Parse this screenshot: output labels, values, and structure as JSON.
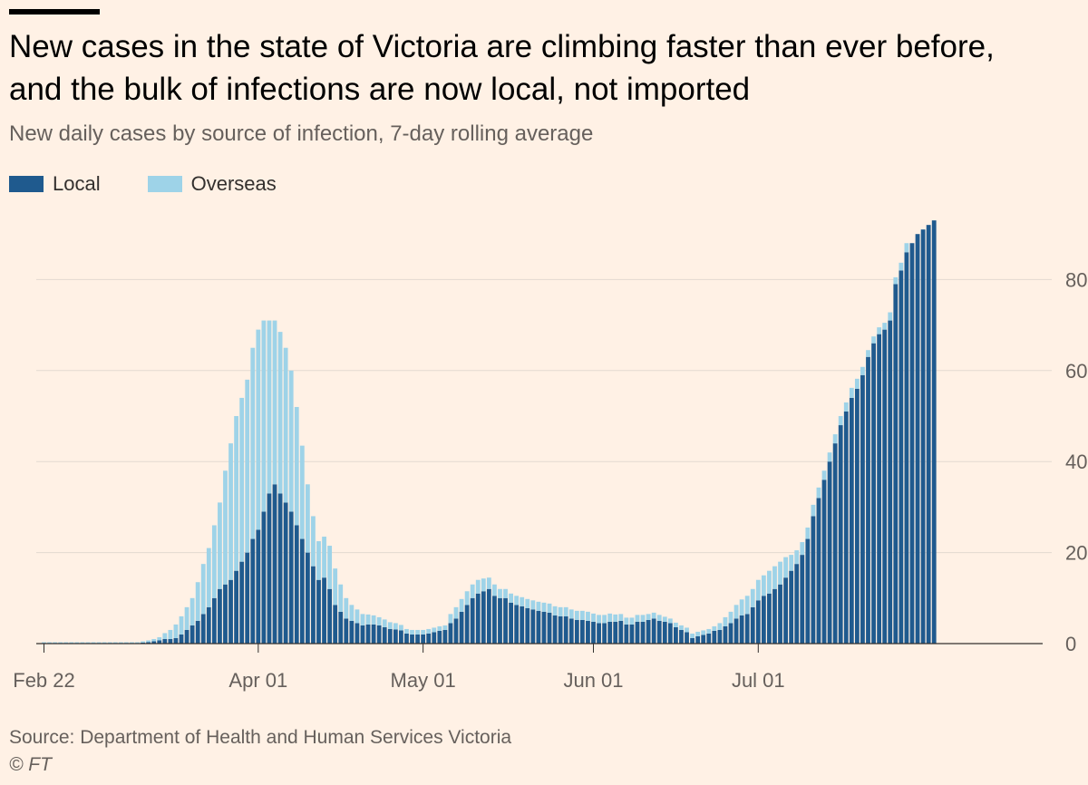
{
  "header": {
    "title": "New cases in the state of Victoria are climbing faster than ever before, and the bulk of infections are now local, not imported",
    "subtitle": "New daily cases by source of infection, 7-day rolling average"
  },
  "footer": {
    "source": "Source: Department of Health and Human Services Victoria",
    "credit": "© FT"
  },
  "colors": {
    "background": "#FFF1E5",
    "local": "#1F5A8E",
    "overseas": "#9ED3E8",
    "grid": "#E3D9D0"
  },
  "chart_data": {
    "type": "bar",
    "stacked": true,
    "title": "New cases in the state of Victoria are climbing faster than ever before, and the bulk of infections are now local, not imported",
    "subtitle": "New daily cases by source of infection, 7-day rolling average",
    "x_start_date": "2020-02-22",
    "x_ticks": [
      "Feb 22",
      "Apr 01",
      "May 01",
      "Jun 01",
      "Jul 01"
    ],
    "y_ticks": [
      0,
      20,
      40,
      60,
      80
    ],
    "ylim": [
      0,
      96
    ],
    "y_axis_side": "right",
    "grid": true,
    "legend_position": "top-left",
    "series": [
      {
        "name": "Local",
        "color": "#1F5A8E",
        "values": [
          0,
          0,
          0,
          0,
          0,
          0,
          0,
          0,
          0,
          0,
          0,
          0,
          0,
          0,
          0,
          0,
          0,
          0,
          0.2,
          0.3,
          0.5,
          0.7,
          1,
          1,
          1.2,
          2,
          3,
          4,
          5,
          6.5,
          8,
          10,
          12,
          13,
          14,
          16,
          18,
          20,
          23,
          25,
          29,
          33,
          35,
          33,
          31,
          29,
          26,
          23,
          20,
          17,
          14,
          14.5,
          12,
          8.5,
          7,
          5.5,
          5,
          4.5,
          4,
          4.2,
          4.2,
          4,
          3.6,
          3.2,
          3.1,
          2.9,
          2.2,
          2,
          2,
          2,
          2.2,
          2.5,
          2.8,
          3,
          4.5,
          5.5,
          7,
          8.5,
          10,
          11,
          11.5,
          12,
          10.5,
          10,
          10,
          9,
          8.5,
          8.2,
          7.8,
          7.5,
          7.2,
          7,
          6.8,
          6.2,
          6,
          6,
          5.5,
          5.2,
          5.2,
          5,
          4.8,
          4.5,
          4.5,
          4.8,
          4.8,
          5,
          4.2,
          4.2,
          4.8,
          4.8,
          5.2,
          5.5,
          5,
          4.8,
          4.5,
          3.6,
          3,
          2.5,
          1.2,
          1.6,
          1.9,
          2.2,
          2.8,
          3,
          3.8,
          4.5,
          5.5,
          6.2,
          6.5,
          8,
          9.5,
          10.5,
          11,
          12,
          13,
          14.5,
          16,
          17.5,
          19.5,
          23,
          28,
          32,
          36,
          40,
          44,
          48,
          51,
          54,
          56,
          59,
          63,
          66,
          68,
          69,
          71,
          79,
          82,
          86,
          88,
          90,
          91,
          92,
          93
        ]
      },
      {
        "name": "Overseas",
        "color": "#9ED3E8",
        "values": [
          0.3,
          0.3,
          0.3,
          0.3,
          0.3,
          0.3,
          0.3,
          0.3,
          0.3,
          0.3,
          0.3,
          0.3,
          0.3,
          0.3,
          0.3,
          0.3,
          0.3,
          0.3,
          0.3,
          0.4,
          0.5,
          0.7,
          1.3,
          2,
          3,
          4,
          5,
          6,
          8.5,
          11,
          13,
          16,
          19,
          25,
          30,
          34,
          36,
          38,
          42,
          44,
          42,
          38,
          36,
          35.5,
          34,
          31,
          26,
          20.5,
          15,
          11,
          8.5,
          9,
          9.5,
          8,
          6,
          4.5,
          3.5,
          3,
          2.5,
          2.2,
          2,
          1.8,
          1.7,
          1.5,
          1.4,
          1.2,
          1,
          1,
          1,
          1,
          1,
          1,
          1,
          1,
          2,
          2.5,
          2.8,
          3,
          3,
          3,
          2.8,
          2.5,
          2.5,
          2,
          2,
          2,
          2,
          2,
          2,
          2,
          2,
          2,
          2,
          2,
          2,
          2,
          2,
          2,
          2,
          2,
          1.8,
          1.8,
          1.8,
          1.8,
          1.6,
          1.5,
          1.5,
          1.5,
          1.5,
          1.5,
          1.3,
          1.3,
          1.3,
          1.1,
          1,
          1,
          1,
          1,
          1,
          1,
          1,
          1,
          1,
          1.5,
          2,
          2.5,
          3,
          3.5,
          4,
          4,
          4.5,
          4.5,
          5,
          5,
          5,
          4.5,
          3.5,
          3,
          2.8,
          2.5,
          2.5,
          2.3,
          2,
          2,
          2,
          2,
          2,
          2.2,
          2.2,
          1.8,
          1.5,
          1.5,
          1.5,
          1.5,
          1.8,
          1.5,
          1.7,
          2
        ]
      }
    ]
  }
}
